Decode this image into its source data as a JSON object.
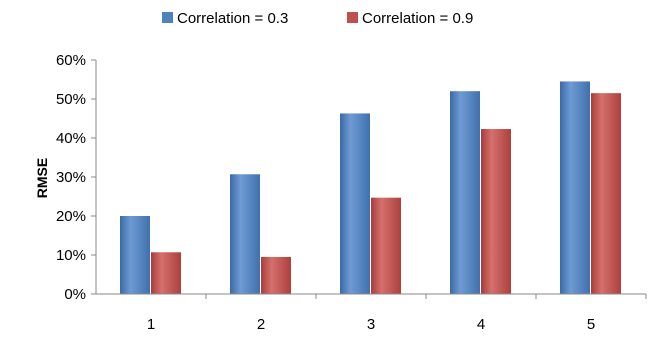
{
  "chart_data": {
    "type": "bar",
    "categories": [
      "1",
      "2",
      "3",
      "4",
      "5"
    ],
    "series": [
      {
        "name": "Correlation = 0.3",
        "color": "#4f81bd",
        "values": [
          0.2,
          0.307,
          0.463,
          0.52,
          0.545
        ]
      },
      {
        "name": "Correlation = 0.9",
        "color": "#c0504d",
        "values": [
          0.107,
          0.095,
          0.247,
          0.423,
          0.515
        ]
      }
    ],
    "title": "",
    "xlabel": "",
    "ylabel": "RMSE",
    "ylim": [
      0,
      0.6
    ],
    "yticks": [
      0,
      0.1,
      0.2,
      0.3,
      0.4,
      0.5,
      0.6
    ],
    "ytick_labels": [
      "0%",
      "10%",
      "20%",
      "30%",
      "40%",
      "50%",
      "60%"
    ],
    "legend_position": "top-center",
    "grid": false
  }
}
